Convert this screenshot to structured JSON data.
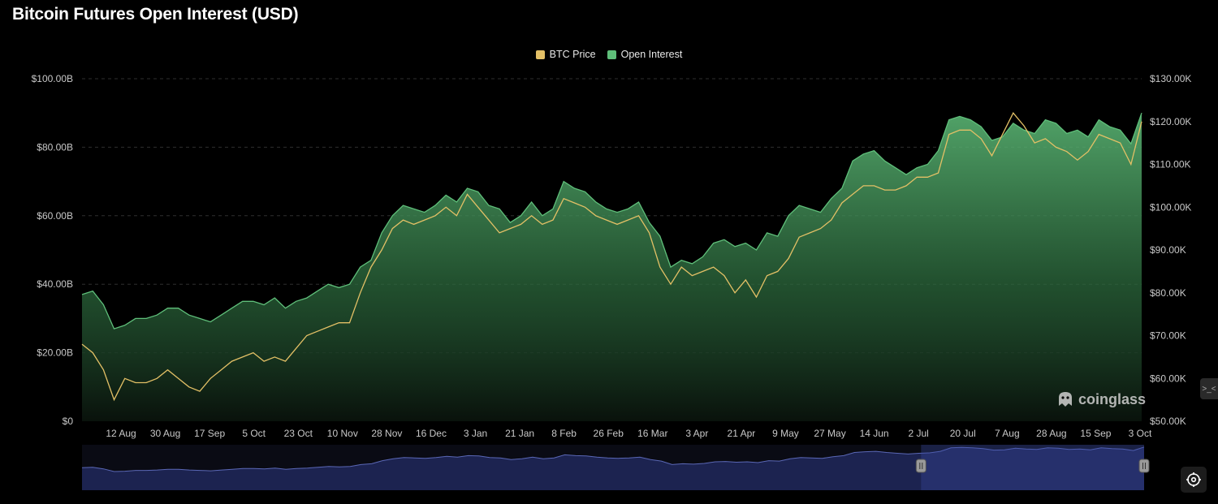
{
  "page": {
    "title": "Bitcoin Futures Open Interest (USD)",
    "watermark": "coinglass",
    "side_tab_label": ">_<"
  },
  "chart_data": {
    "type": "area",
    "title": "Bitcoin Futures Open Interest (USD)",
    "legend_placement": "top-center",
    "grid": true,
    "x_tick_labels": [
      "12 Aug",
      "30 Aug",
      "17 Sep",
      "5 Oct",
      "23 Oct",
      "10 Nov",
      "28 Nov",
      "16 Dec",
      "3 Jan",
      "21 Jan",
      "8 Feb",
      "26 Feb",
      "16 Mar",
      "3 Apr",
      "21 Apr",
      "9 May",
      "27 May",
      "14 Jun",
      "2 Jul",
      "20 Jul",
      "7 Aug",
      "28 Aug",
      "15 Sep",
      "3 Oct"
    ],
    "y_left": {
      "ticks": [
        "$0",
        "$20.00B",
        "$40.00B",
        "$60.00B",
        "$80.00B",
        "$100.00B"
      ],
      "range": [
        0,
        100
      ]
    },
    "y_right": {
      "ticks": [
        "$50.00K",
        "$60.00K",
        "$70.00K",
        "$80.00K",
        "$90.00K",
        "$100.00K",
        "$110.00K",
        "$120.00K",
        "$130.00K"
      ],
      "range": [
        50,
        130
      ]
    },
    "series": [
      {
        "name": "Open Interest",
        "axis": "left",
        "color": "#5fbf7a",
        "values": [
          37,
          38,
          34,
          27,
          28,
          30,
          30,
          31,
          33,
          33,
          31,
          30,
          29,
          31,
          33,
          35,
          35,
          34,
          36,
          33,
          35,
          36,
          38,
          40,
          39,
          40,
          45,
          47,
          55,
          60,
          63,
          62,
          61,
          63,
          66,
          64,
          68,
          67,
          63,
          62,
          58,
          60,
          64,
          60,
          62,
          70,
          68,
          67,
          64,
          62,
          61,
          62,
          64,
          58,
          54,
          45,
          47,
          46,
          48,
          52,
          53,
          51,
          52,
          50,
          55,
          54,
          60,
          63,
          62,
          61,
          65,
          68,
          76,
          78,
          79,
          76,
          74,
          72,
          74,
          75,
          79,
          88,
          89,
          88,
          86,
          82,
          83,
          87,
          85,
          84,
          88,
          87,
          84,
          85,
          83,
          88,
          86,
          85,
          81,
          90
        ]
      },
      {
        "name": "BTC Price",
        "axis": "right",
        "color": "#e3c066",
        "values": [
          68,
          66,
          62,
          55,
          60,
          59,
          59,
          60,
          62,
          60,
          58,
          57,
          60,
          62,
          64,
          65,
          66,
          64,
          65,
          64,
          67,
          70,
          71,
          72,
          73,
          73,
          80,
          86,
          90,
          95,
          97,
          96,
          97,
          98,
          100,
          98,
          103,
          100,
          97,
          94,
          95,
          96,
          98,
          96,
          97,
          102,
          101,
          100,
          98,
          97,
          96,
          97,
          98,
          94,
          86,
          82,
          86,
          84,
          85,
          86,
          84,
          80,
          83,
          79,
          84,
          85,
          88,
          93,
          94,
          95,
          97,
          101,
          103,
          105,
          105,
          104,
          104,
          105,
          107,
          107,
          108,
          117,
          118,
          118,
          116,
          112,
          117,
          122,
          119,
          115,
          116,
          114,
          113,
          111,
          113,
          117,
          116,
          115,
          110,
          120
        ]
      }
    ],
    "navigator": {
      "values": [
        37,
        38,
        34,
        27,
        28,
        30,
        30,
        31,
        33,
        33,
        31,
        30,
        29,
        31,
        33,
        35,
        35,
        34,
        36,
        33,
        35,
        36,
        38,
        40,
        39,
        40,
        45,
        47,
        55,
        60,
        63,
        62,
        61,
        63,
        66,
        64,
        68,
        67,
        63,
        62,
        58,
        60,
        64,
        60,
        62,
        70,
        68,
        67,
        64,
        62,
        61,
        62,
        64,
        58,
        54,
        45,
        47,
        46,
        48,
        52,
        53,
        51,
        52,
        50,
        55,
        54,
        60,
        63,
        62,
        61,
        65,
        68,
        76,
        78,
        79,
        76,
        74,
        72,
        74,
        75,
        79,
        88,
        89,
        88,
        86,
        82,
        83,
        87,
        85,
        84,
        88,
        87,
        84,
        85,
        83,
        88,
        86,
        85,
        81,
        90
      ],
      "selected_range": [
        0.79,
        1.0
      ]
    }
  }
}
